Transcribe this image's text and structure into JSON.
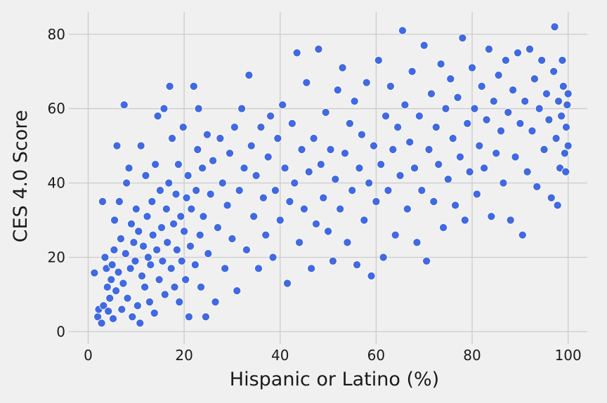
{
  "chart_data": {
    "type": "scatter",
    "title": "",
    "xlabel": "Hispanic or Latino (%)",
    "ylabel": "CES 4.0 Score",
    "xlim": [
      -3,
      104
    ],
    "ylim": [
      -2,
      86
    ],
    "xticks": [
      0,
      20,
      40,
      60,
      80,
      100
    ],
    "yticks": [
      0,
      20,
      40,
      60,
      80
    ],
    "xtick_labels": [
      "0",
      "20",
      "40",
      "60",
      "80",
      "100"
    ],
    "ytick_labels": [
      "0",
      "20",
      "40",
      "60",
      "80"
    ],
    "grid": true,
    "legend": "none",
    "point_color": "#4169e1",
    "background_color": "#f0f0f0",
    "series": [
      {
        "points": [
          [
            1.3,
            15.8
          ],
          [
            2,
            4
          ],
          [
            2.2,
            6
          ],
          [
            2.8,
            2.3
          ],
          [
            3,
            35
          ],
          [
            3.2,
            7
          ],
          [
            3.5,
            20
          ],
          [
            3.8,
            17
          ],
          [
            4,
            12
          ],
          [
            4.2,
            5.5
          ],
          [
            4.5,
            9
          ],
          [
            4.8,
            14
          ],
          [
            5,
            18
          ],
          [
            5.2,
            3.5
          ],
          [
            5.4,
            22
          ],
          [
            5.5,
            30
          ],
          [
            5.8,
            11
          ],
          [
            6,
            50
          ],
          [
            6.3,
            16
          ],
          [
            6.5,
            35
          ],
          [
            6.8,
            25
          ],
          [
            7,
            6
          ],
          [
            7.3,
            13
          ],
          [
            7.5,
            61
          ],
          [
            7.8,
            21
          ],
          [
            8,
            40
          ],
          [
            8.2,
            9
          ],
          [
            8.5,
            44
          ],
          [
            8.8,
            17
          ],
          [
            9,
            29
          ],
          [
            9.2,
            4
          ],
          [
            9.5,
            24
          ],
          [
            9.8,
            19
          ],
          [
            10,
            33
          ],
          [
            10.3,
            7
          ],
          [
            10.5,
            27
          ],
          [
            10.8,
            2.3
          ],
          [
            11,
            50
          ],
          [
            11.2,
            15
          ],
          [
            11.5,
            23
          ],
          [
            11.8,
            12
          ],
          [
            12,
            42
          ],
          [
            12.3,
            31
          ],
          [
            12.5,
            20
          ],
          [
            12.8,
            8
          ],
          [
            13,
            18
          ],
          [
            13.3,
            35
          ],
          [
            13.5,
            26
          ],
          [
            13.8,
            5
          ],
          [
            14,
            45
          ],
          [
            14.3,
            22
          ],
          [
            14.5,
            58
          ],
          [
            14.8,
            14
          ],
          [
            15,
            38
          ],
          [
            15.3,
            28
          ],
          [
            15.5,
            19
          ],
          [
            15.8,
            60
          ],
          [
            16,
            10
          ],
          [
            16.3,
            33
          ],
          [
            16.5,
            24
          ],
          [
            16.8,
            40
          ],
          [
            17,
            66
          ],
          [
            17.3,
            17
          ],
          [
            17.5,
            52
          ],
          [
            17.8,
            29
          ],
          [
            18,
            12
          ],
          [
            18.3,
            37
          ],
          [
            18.5,
            22
          ],
          [
            18.8,
            45
          ],
          [
            19,
            8
          ],
          [
            19.3,
            31
          ],
          [
            19.5,
            19
          ],
          [
            19.8,
            55
          ],
          [
            20,
            27
          ],
          [
            20.3,
            14
          ],
          [
            20.5,
            36
          ],
          [
            20.8,
            42
          ],
          [
            21,
            4
          ],
          [
            21.3,
            23
          ],
          [
            21.5,
            33
          ],
          [
            22,
            66
          ],
          [
            22.3,
            18
          ],
          [
            22.5,
            38
          ],
          [
            22.8,
            49
          ],
          [
            23,
            60
          ],
          [
            23.3,
            26
          ],
          [
            23.5,
            12
          ],
          [
            23.8,
            44
          ],
          [
            24,
            31
          ],
          [
            24.5,
            4
          ],
          [
            24.8,
            53
          ],
          [
            25,
            21
          ],
          [
            25.5,
            37
          ],
          [
            26,
            46
          ],
          [
            26.5,
            8
          ],
          [
            27,
            28
          ],
          [
            27.5,
            52
          ],
          [
            28,
            40
          ],
          [
            28.5,
            17
          ],
          [
            29,
            34
          ],
          [
            29.5,
            48
          ],
          [
            30,
            25
          ],
          [
            30.5,
            55
          ],
          [
            31,
            11
          ],
          [
            31.5,
            38
          ],
          [
            32,
            60
          ],
          [
            32.5,
            44
          ],
          [
            33,
            22
          ],
          [
            33.5,
            69
          ],
          [
            34,
            50
          ],
          [
            34.5,
            31
          ],
          [
            35,
            42
          ],
          [
            35.5,
            17
          ],
          [
            36,
            55
          ],
          [
            36.5,
            36
          ],
          [
            37,
            26
          ],
          [
            37.5,
            47
          ],
          [
            38,
            58
          ],
          [
            38.5,
            20
          ],
          [
            39,
            38
          ],
          [
            39.5,
            52
          ],
          [
            40,
            30
          ],
          [
            40.5,
            61
          ],
          [
            41,
            44
          ],
          [
            41.5,
            13
          ],
          [
            42,
            35
          ],
          [
            42.5,
            56
          ],
          [
            43,
            40
          ],
          [
            43.5,
            75
          ],
          [
            44,
            24
          ],
          [
            44.5,
            49
          ],
          [
            45,
            33
          ],
          [
            45.5,
            67
          ],
          [
            46,
            43
          ],
          [
            46.5,
            17
          ],
          [
            47,
            52
          ],
          [
            47.5,
            29
          ],
          [
            48,
            76
          ],
          [
            48.5,
            45
          ],
          [
            49,
            36
          ],
          [
            49.5,
            59
          ],
          [
            50,
            27
          ],
          [
            50.5,
            49
          ],
          [
            51,
            19
          ],
          [
            51.5,
            41
          ],
          [
            52,
            65
          ],
          [
            52.5,
            33
          ],
          [
            53,
            71
          ],
          [
            53.5,
            48
          ],
          [
            54,
            24
          ],
          [
            54.5,
            56
          ],
          [
            55,
            38
          ],
          [
            55.5,
            62
          ],
          [
            56,
            18
          ],
          [
            56.5,
            44
          ],
          [
            57,
            53
          ],
          [
            57.5,
            30
          ],
          [
            58,
            67
          ],
          [
            58.5,
            40
          ],
          [
            59,
            15
          ],
          [
            59.5,
            50
          ],
          [
            60,
            35
          ],
          [
            60.5,
            73
          ],
          [
            61,
            45
          ],
          [
            61.5,
            20
          ],
          [
            62,
            58
          ],
          [
            62.5,
            38
          ],
          [
            63,
            66
          ],
          [
            63.5,
            49
          ],
          [
            64,
            26
          ],
          [
            64.5,
            55
          ],
          [
            65,
            42
          ],
          [
            65.5,
            81
          ],
          [
            66,
            61
          ],
          [
            66.5,
            33
          ],
          [
            67,
            51
          ],
          [
            67.5,
            70
          ],
          [
            68,
            44
          ],
          [
            68.5,
            24
          ],
          [
            69,
            58
          ],
          [
            69.5,
            38
          ],
          [
            70,
            77
          ],
          [
            70.5,
            19
          ],
          [
            71,
            49
          ],
          [
            71.5,
            64
          ],
          [
            72,
            35
          ],
          [
            72.5,
            55
          ],
          [
            73,
            45
          ],
          [
            73.5,
            72
          ],
          [
            74,
            28
          ],
          [
            74.5,
            60
          ],
          [
            75,
            41
          ],
          [
            75.5,
            68
          ],
          [
            76,
            52
          ],
          [
            76.5,
            34
          ],
          [
            77,
            63
          ],
          [
            77.5,
            47
          ],
          [
            78,
            79
          ],
          [
            78.5,
            30
          ],
          [
            79,
            56
          ],
          [
            79.5,
            43
          ],
          [
            80,
            71
          ],
          [
            80.5,
            60
          ],
          [
            81,
            37
          ],
          [
            81.5,
            50
          ],
          [
            82,
            66
          ],
          [
            82.5,
            44
          ],
          [
            83,
            57
          ],
          [
            83.5,
            76
          ],
          [
            84,
            31
          ],
          [
            84.5,
            62
          ],
          [
            85,
            48
          ],
          [
            85.5,
            69
          ],
          [
            86,
            54
          ],
          [
            86.5,
            40
          ],
          [
            87,
            73
          ],
          [
            87.5,
            59
          ],
          [
            88,
            30
          ],
          [
            88.5,
            65
          ],
          [
            89,
            47
          ],
          [
            89.5,
            75
          ],
          [
            90,
            56
          ],
          [
            90.5,
            26
          ],
          [
            91,
            62
          ],
          [
            91.5,
            43
          ],
          [
            92,
            76
          ],
          [
            92.5,
            54
          ],
          [
            93,
            68
          ],
          [
            93.5,
            39
          ],
          [
            94,
            60
          ],
          [
            94.5,
            73
          ],
          [
            95,
            49
          ],
          [
            95.5,
            64
          ],
          [
            96,
            57
          ],
          [
            96.5,
            36
          ],
          [
            97,
            70
          ],
          [
            97.2,
            82
          ],
          [
            97.5,
            52
          ],
          [
            98,
            62
          ],
          [
            98.3,
            44
          ],
          [
            98.6,
            58
          ],
          [
            99,
            66
          ],
          [
            99.3,
            48
          ],
          [
            99.6,
            55
          ],
          [
            99.8,
            61
          ],
          [
            100,
            64
          ],
          [
            100,
            50
          ],
          [
            99.5,
            43
          ],
          [
            98.8,
            73
          ],
          [
            97.8,
            34
          ]
        ]
      }
    ]
  }
}
